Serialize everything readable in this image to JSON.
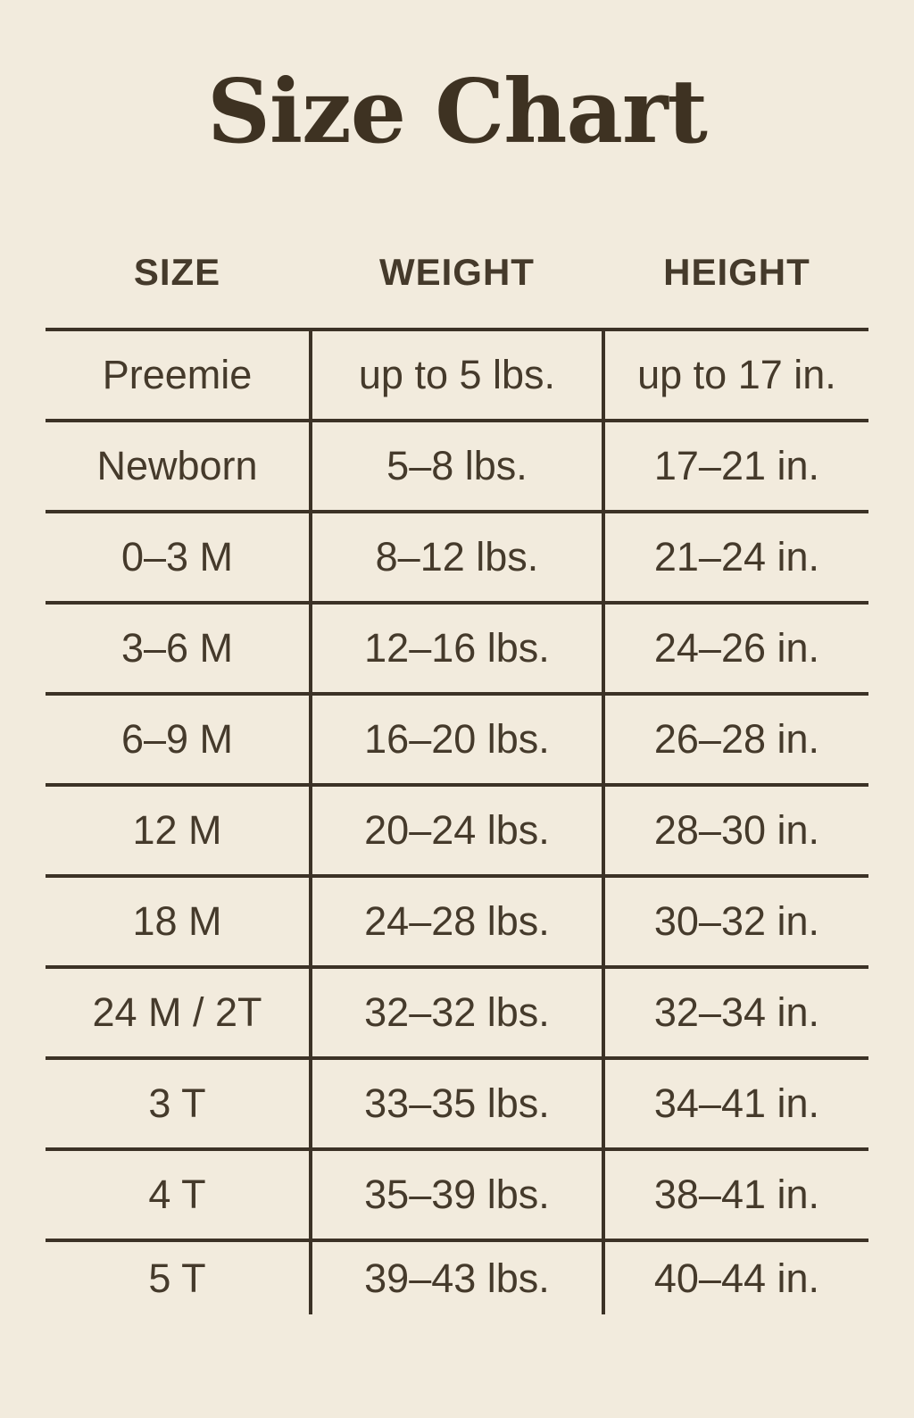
{
  "page": {
    "background": "#f2ebdd",
    "text_color": "#453a2b",
    "line_color": "#3c3226",
    "title_color": "#3e3222"
  },
  "chart_data": {
    "type": "table",
    "title": "Size Chart",
    "columns": [
      "SIZE",
      "WEIGHT",
      "HEIGHT"
    ],
    "rows": [
      [
        "Preemie",
        "up to 5 lbs.",
        "up to 17 in."
      ],
      [
        "Newborn",
        "5–8 lbs.",
        "17–21 in."
      ],
      [
        "0–3 M",
        "8–12 lbs.",
        "21–24 in."
      ],
      [
        "3–6 M",
        "12–16 lbs.",
        "24–26 in."
      ],
      [
        "6–9 M",
        "16–20 lbs.",
        "26–28 in."
      ],
      [
        "12 M",
        "20–24 lbs.",
        "28–30 in."
      ],
      [
        "18 M",
        "24–28 lbs.",
        "30–32 in."
      ],
      [
        "24 M / 2T",
        "32–32 lbs.",
        "32–34 in."
      ],
      [
        "3 T",
        "33–35 lbs.",
        "34–41 in."
      ],
      [
        "4 T",
        "35–39 lbs.",
        "38–41 in."
      ],
      [
        "5 T",
        "39–43 lbs.",
        "40–44 in."
      ]
    ],
    "layout": {
      "grid": "horizontal rules between all rows, vertical rules flanking middle column, no outer border",
      "legend_position": "none"
    }
  }
}
